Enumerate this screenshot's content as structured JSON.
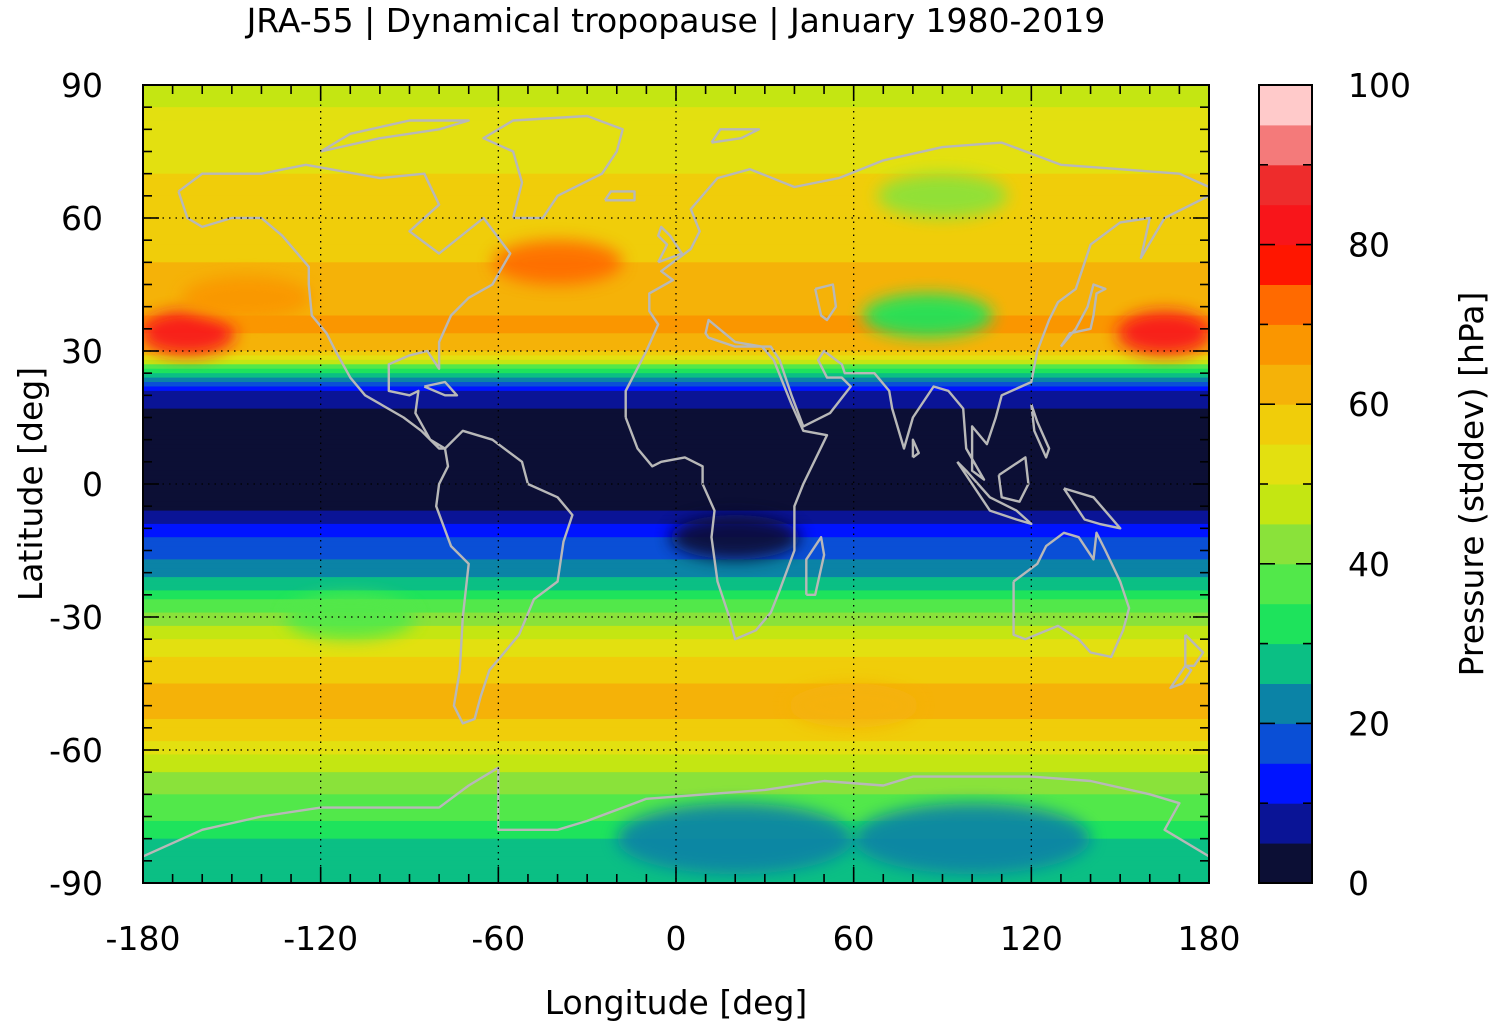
{
  "chart_data": {
    "type": "heatmap",
    "title": "JRA-55 | Dynamical tropopause | January 1980-2019",
    "xlabel": "Longitude [deg]",
    "ylabel": "Latitude [deg]",
    "colorbar_label": "Pressure (stddev) [hPa]",
    "xlim": [
      -180,
      180
    ],
    "ylim": [
      -90,
      90
    ],
    "xticks": [
      -180,
      -120,
      -60,
      0,
      60,
      120,
      180
    ],
    "yticks": [
      90,
      60,
      30,
      0,
      -30,
      -60,
      -90
    ],
    "xtick_labels": [
      "-180",
      "-120",
      "-60",
      "0",
      "60",
      "120",
      "180"
    ],
    "ytick_labels": [
      "90",
      "60",
      "30",
      "0",
      "-30",
      "-60",
      "-90"
    ],
    "colorbar_ticks": [
      0,
      20,
      40,
      60,
      80,
      100
    ],
    "colorbar_tick_labels": [
      "0",
      "20",
      "40",
      "60",
      "80",
      "100"
    ],
    "color_levels": [
      0,
      5,
      10,
      15,
      20,
      25,
      30,
      35,
      40,
      45,
      50,
      55,
      60,
      65,
      70,
      75,
      80,
      85,
      90,
      95,
      100
    ],
    "colors": [
      "#0c0f35",
      "#0a1496",
      "#0014ff",
      "#0a4fd6",
      "#0b83a6",
      "#0bbf84",
      "#1ee35c",
      "#52e84a",
      "#8ae23a",
      "#c4e612",
      "#e3e010",
      "#f0cd0a",
      "#f5b208",
      "#fa9600",
      "#ff6a00",
      "#ff1600",
      "#f8151a",
      "#ee2c2c",
      "#f47a7a",
      "#ffcaca"
    ],
    "grid": true,
    "coastline_color": "#b8b8b8",
    "zonal_profile": {
      "latitude": [
        90,
        80,
        70,
        60,
        50,
        40,
        35,
        30,
        27,
        24,
        20,
        15,
        10,
        5,
        0,
        -5,
        -10,
        -15,
        -20,
        -25,
        -30,
        -35,
        -40,
        -45,
        -50,
        -55,
        -60,
        -65,
        -70,
        -75,
        -80,
        -85,
        -90
      ],
      "pressure_stddev": [
        48,
        52,
        55,
        57,
        60,
        64,
        66,
        60,
        42,
        22,
        8,
        3,
        2,
        2,
        2,
        4,
        12,
        18,
        22,
        32,
        42,
        50,
        56,
        60,
        62,
        58,
        52,
        45,
        40,
        36,
        30,
        27,
        26
      ]
    },
    "features": [
      {
        "lon": -165,
        "lat": 34,
        "value": 80
      },
      {
        "lon": 165,
        "lat": 34,
        "value": 80
      },
      {
        "lon": -40,
        "lat": 50,
        "value": 70
      },
      {
        "lon": -145,
        "lat": 42,
        "value": 66
      },
      {
        "lon": 85,
        "lat": 38,
        "value": 32
      },
      {
        "lon": 90,
        "lat": 65,
        "value": 42
      },
      {
        "lon": 60,
        "lat": -50,
        "value": 63
      },
      {
        "lon": 100,
        "lat": -80,
        "value": 22
      },
      {
        "lon": 20,
        "lat": -80,
        "value": 22
      },
      {
        "lon": -110,
        "lat": -30,
        "value": 36
      },
      {
        "lon": 20,
        "lat": -12,
        "value": 2
      }
    ]
  }
}
